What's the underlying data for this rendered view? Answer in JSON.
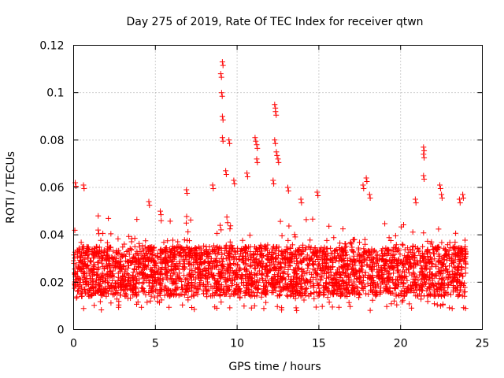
{
  "chart_data": {
    "type": "scatter",
    "title": "Day 275 of 2019, Rate Of TEC Index for receiver qtwn",
    "xlabel": "GPS time / hours",
    "ylabel": "ROTI / TECUs",
    "xlim": [
      0,
      25
    ],
    "ylim": [
      0,
      0.12
    ],
    "x_ticks": [
      "0",
      "5",
      "10",
      "15",
      "20",
      "25"
    ],
    "y_ticks": [
      "0",
      "0.02",
      "0.04",
      "0.06",
      "0.08",
      "0.1",
      "0.12"
    ],
    "grid": true,
    "marker": "+",
    "color": "#ff0000",
    "x_range_observed": [
      0,
      24
    ],
    "typical_band": [
      0.008,
      0.035
    ],
    "series": [
      {
        "name": "ROTI",
        "peaks": [
          {
            "x": 0.1,
            "y": 0.062
          },
          {
            "x": 0.6,
            "y": 0.061
          },
          {
            "x": 1.5,
            "y": 0.042
          },
          {
            "x": 4.6,
            "y": 0.054
          },
          {
            "x": 5.3,
            "y": 0.05
          },
          {
            "x": 6.9,
            "y": 0.059
          },
          {
            "x": 8.5,
            "y": 0.061
          },
          {
            "x": 9.1,
            "y": 0.113
          },
          {
            "x": 9.0,
            "y": 0.108
          },
          {
            "x": 9.05,
            "y": 0.1
          },
          {
            "x": 9.1,
            "y": 0.09
          },
          {
            "x": 9.1,
            "y": 0.081
          },
          {
            "x": 9.5,
            "y": 0.08
          },
          {
            "x": 9.3,
            "y": 0.067
          },
          {
            "x": 9.8,
            "y": 0.063
          },
          {
            "x": 11.1,
            "y": 0.081
          },
          {
            "x": 11.2,
            "y": 0.078
          },
          {
            "x": 11.2,
            "y": 0.072
          },
          {
            "x": 10.6,
            "y": 0.066
          },
          {
            "x": 12.3,
            "y": 0.095
          },
          {
            "x": 12.35,
            "y": 0.092
          },
          {
            "x": 12.3,
            "y": 0.08
          },
          {
            "x": 12.4,
            "y": 0.075
          },
          {
            "x": 12.5,
            "y": 0.072
          },
          {
            "x": 12.2,
            "y": 0.063
          },
          {
            "x": 13.1,
            "y": 0.06
          },
          {
            "x": 13.9,
            "y": 0.055
          },
          {
            "x": 14.9,
            "y": 0.058
          },
          {
            "x": 17.7,
            "y": 0.061
          },
          {
            "x": 17.9,
            "y": 0.064
          },
          {
            "x": 18.1,
            "y": 0.057
          },
          {
            "x": 21.4,
            "y": 0.077
          },
          {
            "x": 21.4,
            "y": 0.074
          },
          {
            "x": 21.4,
            "y": 0.065
          },
          {
            "x": 20.9,
            "y": 0.055
          },
          {
            "x": 22.4,
            "y": 0.061
          },
          {
            "x": 22.5,
            "y": 0.057
          },
          {
            "x": 23.6,
            "y": 0.055
          },
          {
            "x": 23.8,
            "y": 0.057
          }
        ]
      }
    ]
  }
}
